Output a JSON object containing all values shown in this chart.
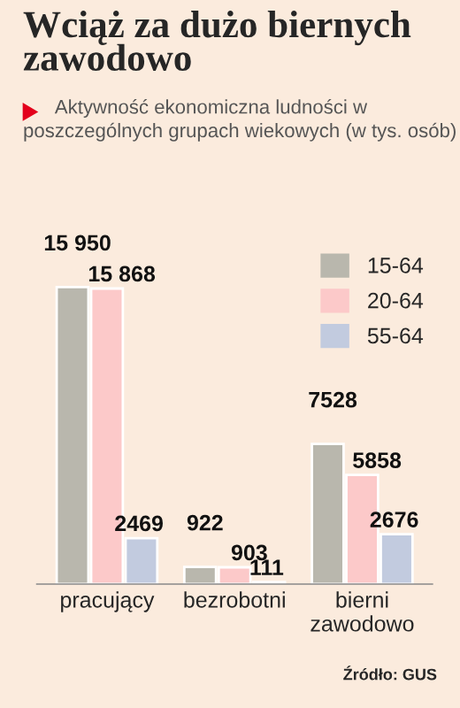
{
  "chart_data": {
    "type": "bar",
    "title": "Wciąż za dużo biernych zawodowo",
    "subtitle": "Aktywność ekonomiczna ludności w poszczególnych grupach wiekowych (w tys. osób)",
    "categories": [
      "pracujący",
      "bezrobotni",
      "bierni\nzawodowo"
    ],
    "series": [
      {
        "name": "15-64",
        "color": "#b9b7ad",
        "values": [
          15950,
          922,
          7528
        ],
        "value_labels": [
          "15 950",
          "922",
          "7528"
        ]
      },
      {
        "name": "20-64",
        "color": "#fcc9c9",
        "values": [
          15868,
          903,
          5858
        ],
        "value_labels": [
          "15 868",
          "903",
          "5858"
        ]
      },
      {
        "name": "55-64",
        "color": "#c2cbdf",
        "values": [
          2469,
          111,
          2676
        ],
        "value_labels": [
          "2469",
          "111",
          "2676"
        ]
      }
    ],
    "legend": "top right",
    "grid": false,
    "annotations": [
      "Źródło: GUS"
    ]
  }
}
